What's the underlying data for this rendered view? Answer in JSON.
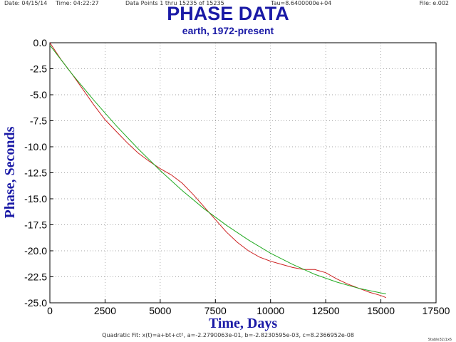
{
  "header": {
    "date": "Date: 04/15/14",
    "time": "Time: 04:22:27",
    "points": "Data Points 1 thru 15235 of 15235",
    "tau": "Tau=8.6400000e+04",
    "file": "File: e.002"
  },
  "footer": {
    "fit": "Quadratic Fit: x(t)=a+bt+ct², a=-2.2790063e-01, b=-2.8230595e-03, c=8.2366952e-08",
    "tag": "Stable32/1x6"
  },
  "colors": {
    "title": "#1a1aa6",
    "data_series": "#cc2222",
    "fit_series": "#22aa22",
    "grid": "#888888"
  },
  "chart_data": {
    "type": "line",
    "title": "PHASE DATA",
    "subtitle": "earth, 1972-present",
    "xlabel": "Time,  Days",
    "ylabel": "Phase,  Seconds",
    "xlim": [
      0,
      17500
    ],
    "ylim": [
      -25,
      0
    ],
    "xticks": [
      0,
      2500,
      5000,
      7500,
      10000,
      12500,
      15000,
      17500
    ],
    "yticks": [
      0.0,
      -2.5,
      -5.0,
      -7.5,
      -10.0,
      -12.5,
      -15.0,
      -17.5,
      -20.0,
      -22.5,
      -25.0
    ],
    "xtick_labels": [
      "0",
      "2500",
      "5000",
      "7500",
      "10000",
      "12500",
      "15000",
      "17500"
    ],
    "ytick_labels": [
      "0.0",
      "-2.5",
      "-5.0",
      "-7.5",
      "-10.0",
      "-12.5",
      "-15.0",
      "-17.5",
      "-20.0",
      "-22.5",
      "-25.0"
    ],
    "grid": true,
    "fit_coefficients": {
      "a": -0.22790063,
      "b": -0.0028230595,
      "c": 8.2366952e-08
    },
    "series": [
      {
        "x": [
          0,
          500,
          1000,
          1500,
          2000,
          2500,
          3000,
          3500,
          4000,
          4500,
          5000,
          5500,
          6000,
          6500,
          7000,
          7500,
          8000,
          8500,
          9000,
          9500,
          10000,
          10500,
          11000,
          11500,
          12000,
          12500,
          13000,
          13500,
          14000,
          14500,
          15000,
          15235
        ],
        "y": [
          0.0,
          -1.6,
          -3.0,
          -4.5,
          -6.0,
          -7.4,
          -8.5,
          -9.6,
          -10.6,
          -11.4,
          -12.1,
          -12.7,
          -13.5,
          -14.6,
          -15.8,
          -17.0,
          -18.2,
          -19.2,
          -20.0,
          -20.6,
          -21.0,
          -21.3,
          -21.6,
          -21.8,
          -21.8,
          -22.1,
          -22.7,
          -23.2,
          -23.6,
          -24.0,
          -24.3,
          -24.5
        ]
      },
      {
        "x": [
          0,
          1000,
          2000,
          3000,
          4000,
          5000,
          6000,
          7000,
          8000,
          9000,
          10000,
          11000,
          12000,
          13000,
          14000,
          15000,
          15235
        ],
        "y": [
          -0.23,
          -3.0,
          -5.54,
          -7.96,
          -10.2,
          -12.29,
          -14.21,
          -15.98,
          -17.55,
          -18.96,
          -20.23,
          -21.31,
          -22.26,
          -23.01,
          -23.61,
          -24.05,
          -24.14
        ]
      }
    ]
  }
}
